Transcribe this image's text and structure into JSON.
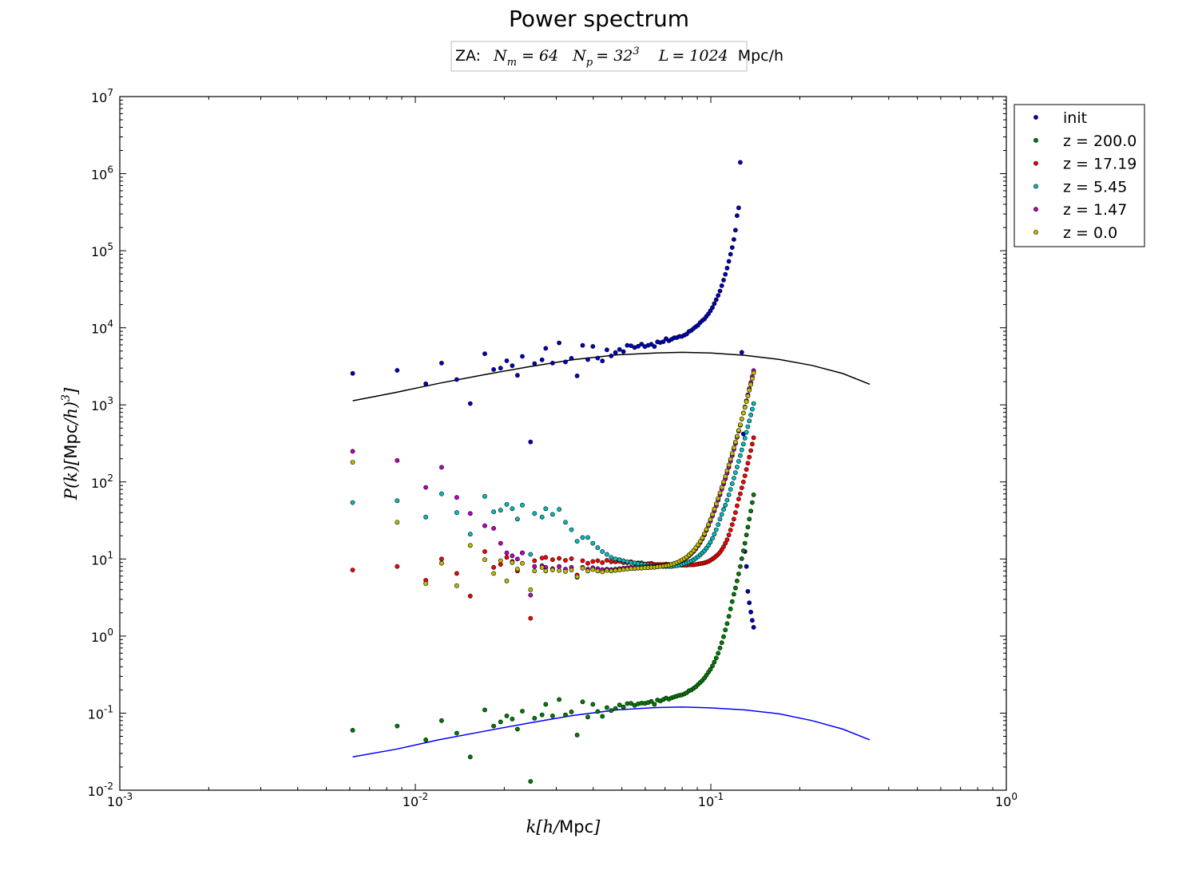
{
  "chart_data": {
    "type": "scatter",
    "title": "Power spectrum",
    "annotation": {
      "prefix": "ZA:",
      "parts": [
        {
          "sym": "N",
          "sub": "m",
          "eq": "= 64"
        },
        {
          "sym": "N",
          "sub": "p",
          "eq": "= 32",
          "sup": "3"
        },
        {
          "sym": "L",
          "eq": "= 1024",
          "suffix": "Mpc/h"
        }
      ]
    },
    "xlabel": {
      "sym": "k",
      "open": "[",
      "h": "h",
      "slash": "/",
      "unit": "Mpc",
      "close": "]"
    },
    "ylabel": {
      "sym": "P(k)",
      "open": "[",
      "unit": "Mpc",
      "slash": "/",
      "h": "h",
      "close": ")",
      "pow": "3",
      "end": "]"
    },
    "xscale": "log",
    "yscale": "log",
    "xlim": [
      0.001,
      1
    ],
    "ylim": [
      0.01,
      10000000
    ],
    "x_ticks": [
      {
        "base": "10",
        "exp": "-3"
      },
      {
        "base": "10",
        "exp": "-2"
      },
      {
        "base": "10",
        "exp": "-1"
      },
      {
        "base": "10",
        "exp": "0"
      }
    ],
    "y_ticks": [
      {
        "base": "10",
        "exp": "-2"
      },
      {
        "base": "10",
        "exp": "-1"
      },
      {
        "base": "10",
        "exp": "0"
      },
      {
        "base": "10",
        "exp": "1"
      },
      {
        "base": "10",
        "exp": "2"
      },
      {
        "base": "10",
        "exp": "3"
      },
      {
        "base": "10",
        "exp": "4"
      },
      {
        "base": "10",
        "exp": "5"
      },
      {
        "base": "10",
        "exp": "6"
      },
      {
        "base": "10",
        "exp": "7"
      }
    ],
    "grid": false,
    "legend_position": "outside-top-right",
    "k": [
      0.00614,
      0.00868,
      0.01085,
      0.01227,
      0.01381,
      0.01534,
      0.01718,
      0.01841,
      0.01944,
      0.02039,
      0.02129,
      0.02216,
      0.02302,
      0.02455,
      0.02532,
      0.02685,
      0.02762,
      0.02915,
      0.03068,
      0.03221,
      0.03375,
      0.03528,
      0.03682,
      0.03835,
      0.03988,
      0.04142,
      0.04295,
      0.04449,
      0.04602,
      0.04756,
      0.04909,
      0.05062,
      0.05216,
      0.05369,
      0.05523,
      0.05676,
      0.0583,
      0.05983,
      0.06136,
      0.0629,
      0.06443,
      0.06597,
      0.0675,
      0.06904,
      0.07057,
      0.07211,
      0.07364,
      0.07517,
      0.07671,
      0.07824,
      0.07978,
      0.08131,
      0.08285,
      0.08438,
      0.08591,
      0.08745,
      0.08898,
      0.09052,
      0.09205,
      0.09359,
      0.09512,
      0.09666,
      0.09819,
      0.09972,
      0.10126,
      0.10279,
      0.10433,
      0.10586,
      0.1074,
      0.10893,
      0.11047,
      0.112,
      0.11353,
      0.11507,
      0.1166,
      0.11814,
      0.11967,
      0.12121,
      0.12274,
      0.12428,
      0.12581,
      0.12734,
      0.12888,
      0.13041,
      0.13195,
      0.13348,
      0.13502,
      0.13655,
      0.13809,
      0.13962
    ],
    "series": [
      {
        "name": "init",
        "color": "#0000bf",
        "values": [
          2560,
          2800,
          1880,
          3480,
          2130,
          1040,
          4600,
          2880,
          3000,
          3730,
          3230,
          2420,
          4250,
          330,
          3430,
          3840,
          5420,
          3480,
          6360,
          3610,
          4020,
          2380,
          5910,
          3870,
          5730,
          4050,
          3710,
          5170,
          4320,
          4770,
          5230,
          4910,
          5910,
          5860,
          5550,
          5760,
          6150,
          5710,
          5930,
          6110,
          5720,
          6560,
          6450,
          6600,
          7230,
          6780,
          7070,
          7410,
          7450,
          7720,
          7730,
          8000,
          8290,
          8960,
          9240,
          9800,
          10300,
          10800,
          11700,
          12400,
          13000,
          14100,
          15200,
          16600,
          18300,
          20600,
          23200,
          26300,
          30000,
          35200,
          41600,
          49400,
          59500,
          72900,
          90000,
          110000,
          140000,
          185000,
          285000,
          360000,
          1400000,
          4800,
          420,
          12.5,
          8,
          3.8,
          2.7,
          2.05,
          1.6,
          1.3
        ]
      },
      {
        "name": "z = 200.0",
        "color": "#007f00",
        "values": [
          0.06,
          0.068,
          0.045,
          0.08,
          0.055,
          0.027,
          0.11,
          0.068,
          0.077,
          0.092,
          0.084,
          0.062,
          0.106,
          0.013,
          0.086,
          0.095,
          0.13,
          0.092,
          0.15,
          0.095,
          0.104,
          0.052,
          0.14,
          0.089,
          0.13,
          0.105,
          0.091,
          0.118,
          0.108,
          0.115,
          0.128,
          0.12,
          0.133,
          0.134,
          0.126,
          0.132,
          0.135,
          0.134,
          0.137,
          0.142,
          0.13,
          0.148,
          0.144,
          0.15,
          0.157,
          0.152,
          0.158,
          0.162,
          0.166,
          0.17,
          0.172,
          0.178,
          0.184,
          0.195,
          0.2,
          0.21,
          0.22,
          0.235,
          0.25,
          0.265,
          0.285,
          0.31,
          0.34,
          0.37,
          0.41,
          0.46,
          0.52,
          0.6,
          0.7,
          0.82,
          0.98,
          1.2,
          1.45,
          1.8,
          2.25,
          2.8,
          3.5,
          4.2,
          5.2,
          6.4,
          8,
          10.1,
          12.8,
          16,
          20.5,
          26,
          33,
          42,
          54,
          68
        ]
      },
      {
        "name": "z = 17.19",
        "color": "#ff0000",
        "values": [
          7.2,
          8,
          5.3,
          10,
          6.5,
          3.3,
          12.5,
          7.8,
          8.5,
          10.5,
          9.3,
          7,
          12,
          1.7,
          9.5,
          10.3,
          10.5,
          9.8,
          10.2,
          9.6,
          10.1,
          6.2,
          9.5,
          8.8,
          9.3,
          9.5,
          9,
          9.6,
          9.2,
          9.2,
          9.3,
          9,
          9,
          9.2,
          8.8,
          8.9,
          8.9,
          8.6,
          8.7,
          8.8,
          8.5,
          8.5,
          8.5,
          8.5,
          8.6,
          8.5,
          8.4,
          8.4,
          8.4,
          8.4,
          8.3,
          8.3,
          8.3,
          8.4,
          8.4,
          8.4,
          8.5,
          8.6,
          8.7,
          8.8,
          8.9,
          9.1,
          9.3,
          9.6,
          10,
          10.4,
          10.9,
          11.5,
          12.2,
          13.2,
          14.4,
          16,
          17.8,
          20.5,
          23.8,
          28,
          33,
          40,
          49,
          60,
          70,
          84,
          100,
          120,
          145,
          175,
          210,
          255,
          310,
          375
        ]
      },
      {
        "name": "z = 5.45",
        "color": "#00bfbf",
        "values": [
          54,
          57,
          35,
          70,
          40,
          21,
          65,
          41,
          43,
          51,
          45,
          33,
          50,
          11.5,
          39,
          35,
          45,
          38,
          44,
          30,
          24,
          17,
          19,
          19,
          16,
          14,
          12.5,
          11.5,
          10.5,
          10,
          9.8,
          9.5,
          9.2,
          9,
          8.9,
          8.7,
          8.6,
          8.5,
          8.4,
          8.3,
          8.2,
          8.1,
          8.1,
          8,
          8,
          8,
          8,
          8.1,
          8.2,
          8.3,
          8.5,
          8.7,
          8.9,
          9.1,
          9.4,
          9.8,
          10.2,
          10.7,
          11.3,
          12,
          12.8,
          13.8,
          15,
          16.5,
          18.5,
          21,
          24,
          28,
          33,
          38,
          44,
          50,
          58,
          68,
          80,
          95,
          112,
          132,
          156,
          185,
          220,
          260,
          310,
          370,
          440,
          520,
          620,
          740,
          880,
          1040
        ]
      },
      {
        "name": "z = 1.47",
        "color": "#bf00bf",
        "values": [
          250,
          190,
          85,
          155,
          63,
          39,
          27,
          25,
          16,
          12,
          11,
          10,
          12,
          3.4,
          8,
          8.2,
          7.8,
          7.5,
          8,
          7.4,
          7.8,
          5.8,
          7.8,
          7.4,
          7.7,
          7.5,
          7.3,
          7.4,
          7.3,
          7.4,
          7.5,
          7.6,
          7.7,
          7.8,
          7.8,
          7.8,
          7.9,
          7.9,
          8,
          8,
          8,
          8.1,
          8.1,
          8.2,
          8.3,
          8.4,
          8.5,
          8.7,
          8.9,
          9.2,
          9.5,
          9.9,
          10.4,
          11,
          11.7,
          12.5,
          13.5,
          14.8,
          16.3,
          18.2,
          20.5,
          23.5,
          27,
          31,
          36,
          42,
          49,
          58,
          68,
          80,
          94,
          110,
          130,
          155,
          185,
          220,
          265,
          315,
          380,
          455,
          545,
          655,
          785,
          940,
          1130,
          1350,
          1620,
          1940,
          2320,
          2780
        ]
      },
      {
        "name": "z = 0.0",
        "color": "#bfbf00",
        "values": [
          180,
          30,
          4.8,
          8.8,
          4.5,
          15,
          9.8,
          6.5,
          9.5,
          5.2,
          9,
          7.4,
          8.8,
          4,
          7,
          7.8,
          7,
          7.2,
          7.1,
          6.9,
          7.2,
          5.9,
          7.6,
          7,
          7.3,
          7,
          6.8,
          7.1,
          7,
          7.1,
          7.2,
          7.3,
          7.4,
          7.5,
          7.5,
          7.6,
          7.6,
          7.7,
          7.7,
          7.8,
          7.8,
          7.9,
          8,
          8.1,
          8.2,
          8.3,
          8.5,
          8.7,
          9,
          9.3,
          9.7,
          10.1,
          10.6,
          11.3,
          12,
          12.9,
          14,
          15.3,
          16.9,
          18.8,
          21.2,
          24.2,
          28,
          32.5,
          38,
          44.5,
          52,
          61,
          72,
          85,
          100,
          118,
          140,
          166,
          197,
          234,
          278,
          330,
          392,
          466,
          553,
          657,
          780,
          926,
          1100,
          1305,
          1550,
          1840,
          2185,
          2595
        ]
      }
    ],
    "lines": [
      {
        "color": "#000000",
        "k": [
          0.00614,
          0.0086,
          0.012,
          0.017,
          0.024,
          0.034,
          0.048,
          0.065,
          0.08,
          0.1,
          0.13,
          0.17,
          0.22,
          0.28,
          0.345
        ],
        "values": [
          1130,
          1450,
          1900,
          2450,
          3100,
          3850,
          4450,
          4700,
          4800,
          4700,
          4400,
          3900,
          3250,
          2550,
          1850
        ]
      },
      {
        "color": "#0000ff",
        "k": [
          0.00614,
          0.0086,
          0.012,
          0.017,
          0.024,
          0.034,
          0.048,
          0.065,
          0.08,
          0.1,
          0.13,
          0.17,
          0.22,
          0.28,
          0.345
        ],
        "values": [
          0.027,
          0.034,
          0.045,
          0.058,
          0.074,
          0.093,
          0.11,
          0.118,
          0.12,
          0.117,
          0.11,
          0.098,
          0.08,
          0.062,
          0.045
        ]
      }
    ]
  }
}
